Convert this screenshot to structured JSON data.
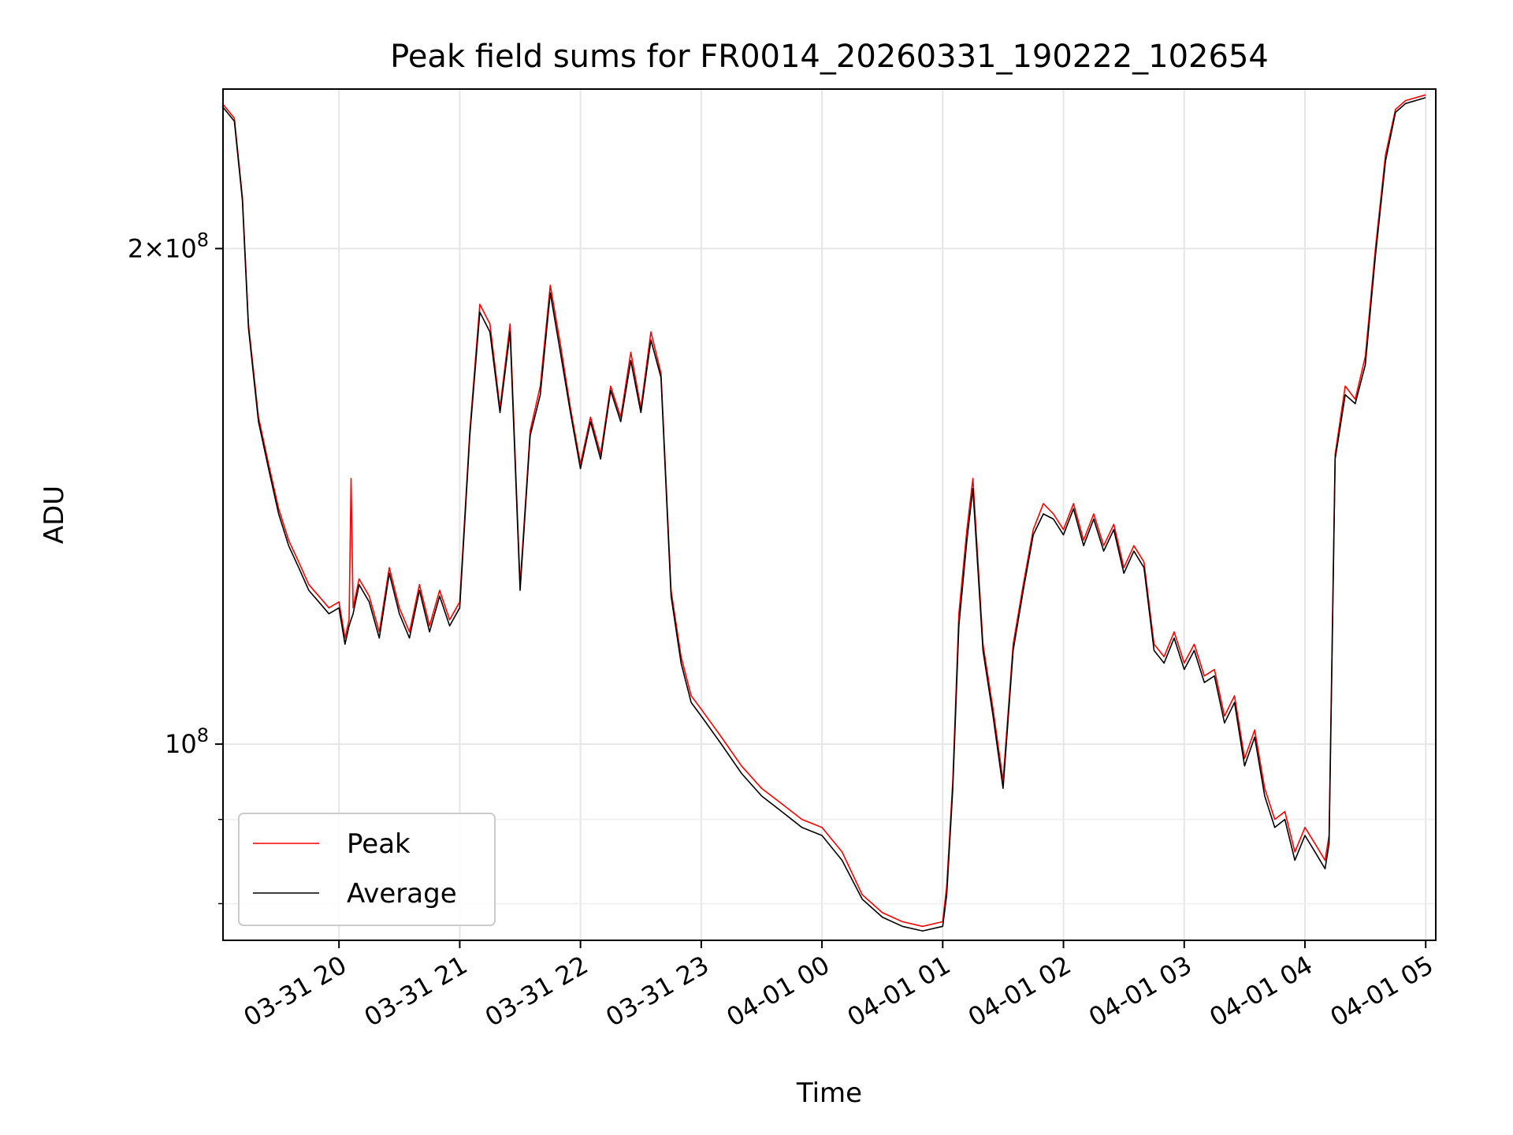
{
  "chart_data": {
    "type": "line",
    "title": "Peak field sums for FR0014_20260331_190222_102654",
    "xlabel": "Time",
    "ylabel": "ADU",
    "yscale": "log",
    "xlim": [
      "2026-03-31 19:02:22",
      "2026-04-01 05:05:00"
    ],
    "ylim": [
      76000000,
      250000000
    ],
    "grid": true,
    "legend_placement": "lower-left",
    "x_ticks": [
      "03-31 20",
      "03-31 21",
      "03-31 22",
      "03-31 23",
      "04-01 00",
      "04-01 01",
      "04-01 02",
      "04-01 03",
      "04-01 04",
      "04-01 05"
    ],
    "y_ticks": [
      {
        "value": 100000000,
        "label": "10^8"
      },
      {
        "value": 200000000,
        "label": "2×10^8"
      }
    ],
    "series": [
      {
        "name": "Peak",
        "color": "#ff0000",
        "points": [
          [
            "03-31 19:02",
            245000000
          ],
          [
            "03-31 19:08",
            240000000
          ],
          [
            "03-31 19:12",
            215000000
          ],
          [
            "03-31 19:15",
            180000000
          ],
          [
            "03-31 19:20",
            158000000
          ],
          [
            "03-31 19:25",
            148000000
          ],
          [
            "03-31 19:30",
            139000000
          ],
          [
            "03-31 19:35",
            133000000
          ],
          [
            "03-31 19:40",
            129000000
          ],
          [
            "03-31 19:45",
            125000000
          ],
          [
            "03-31 19:50",
            123000000
          ],
          [
            "03-31 19:55",
            121000000
          ],
          [
            "03-31 20:00",
            122000000
          ],
          [
            "03-31 20:03",
            116000000
          ],
          [
            "03-31 20:05",
            119000000
          ],
          [
            "03-31 20:06",
            145000000
          ],
          [
            "03-31 20:07",
            121000000
          ],
          [
            "03-31 20:10",
            126000000
          ],
          [
            "03-31 20:15",
            123000000
          ],
          [
            "03-31 20:20",
            117000000
          ],
          [
            "03-31 20:25",
            128000000
          ],
          [
            "03-31 20:30",
            121000000
          ],
          [
            "03-31 20:35",
            117000000
          ],
          [
            "03-31 20:40",
            125000000
          ],
          [
            "03-31 20:45",
            118000000
          ],
          [
            "03-31 20:50",
            124000000
          ],
          [
            "03-31 20:55",
            119000000
          ],
          [
            "03-31 21:00",
            122000000
          ],
          [
            "03-31 21:05",
            155000000
          ],
          [
            "03-31 21:10",
            185000000
          ],
          [
            "03-31 21:15",
            180000000
          ],
          [
            "03-31 21:20",
            160000000
          ],
          [
            "03-31 21:25",
            180000000
          ],
          [
            "03-31 21:30",
            125000000
          ],
          [
            "03-31 21:35",
            155000000
          ],
          [
            "03-31 21:40",
            165000000
          ],
          [
            "03-31 21:45",
            190000000
          ],
          [
            "03-31 21:50",
            175000000
          ],
          [
            "03-31 21:55",
            160000000
          ],
          [
            "03-31 22:00",
            148000000
          ],
          [
            "03-31 22:05",
            158000000
          ],
          [
            "03-31 22:10",
            150000000
          ],
          [
            "03-31 22:15",
            165000000
          ],
          [
            "03-31 22:20",
            158000000
          ],
          [
            "03-31 22:25",
            173000000
          ],
          [
            "03-31 22:30",
            160000000
          ],
          [
            "03-31 22:35",
            178000000
          ],
          [
            "03-31 22:40",
            168000000
          ],
          [
            "03-31 22:45",
            124000000
          ],
          [
            "03-31 22:50",
            113000000
          ],
          [
            "03-31 22:55",
            107000000
          ],
          [
            "03-31 23:00",
            105000000
          ],
          [
            "03-31 23:10",
            101000000
          ],
          [
            "03-31 23:20",
            97000000
          ],
          [
            "03-31 23:30",
            94000000
          ],
          [
            "03-31 23:40",
            92000000
          ],
          [
            "03-31 23:50",
            90000000
          ],
          [
            "04-01 00:00",
            89000000
          ],
          [
            "04-01 00:10",
            86000000
          ],
          [
            "04-01 00:20",
            81000000
          ],
          [
            "04-01 00:30",
            79000000
          ],
          [
            "04-01 00:40",
            78000000
          ],
          [
            "04-01 00:50",
            77500000
          ],
          [
            "04-01 01:00",
            78000000
          ],
          [
            "04-01 01:02",
            82000000
          ],
          [
            "04-01 01:05",
            95000000
          ],
          [
            "04-01 01:08",
            120000000
          ],
          [
            "04-01 01:12",
            135000000
          ],
          [
            "04-01 01:15",
            145000000
          ],
          [
            "04-01 01:20",
            115000000
          ],
          [
            "04-01 01:25",
            105000000
          ],
          [
            "04-01 01:30",
            95000000
          ],
          [
            "04-01 01:35",
            115000000
          ],
          [
            "04-01 01:40",
            125000000
          ],
          [
            "04-01 01:45",
            135000000
          ],
          [
            "04-01 01:50",
            140000000
          ],
          [
            "04-01 01:55",
            138000000
          ],
          [
            "04-01 02:00",
            135000000
          ],
          [
            "04-01 02:05",
            140000000
          ],
          [
            "04-01 02:10",
            133000000
          ],
          [
            "04-01 02:15",
            138000000
          ],
          [
            "04-01 02:20",
            132000000
          ],
          [
            "04-01 02:25",
            136000000
          ],
          [
            "04-01 02:30",
            128000000
          ],
          [
            "04-01 02:35",
            132000000
          ],
          [
            "04-01 02:40",
            129000000
          ],
          [
            "04-01 02:45",
            115000000
          ],
          [
            "04-01 02:50",
            113000000
          ],
          [
            "04-01 02:55",
            117000000
          ],
          [
            "04-01 03:00",
            112000000
          ],
          [
            "04-01 03:05",
            115000000
          ],
          [
            "04-01 03:10",
            110000000
          ],
          [
            "04-01 03:15",
            111000000
          ],
          [
            "04-01 03:20",
            104000000
          ],
          [
            "04-01 03:25",
            107000000
          ],
          [
            "04-01 03:30",
            98000000
          ],
          [
            "04-01 03:35",
            102000000
          ],
          [
            "04-01 03:40",
            94000000
          ],
          [
            "04-01 03:45",
            90000000
          ],
          [
            "04-01 03:50",
            91000000
          ],
          [
            "04-01 03:55",
            86000000
          ],
          [
            "04-01 04:00",
            89000000
          ],
          [
            "04-01 04:05",
            87000000
          ],
          [
            "04-01 04:10",
            85000000
          ],
          [
            "04-01 04:12",
            88000000
          ],
          [
            "04-01 04:15",
            150000000
          ],
          [
            "04-01 04:20",
            165000000
          ],
          [
            "04-01 04:25",
            162000000
          ],
          [
            "04-01 04:30",
            172000000
          ],
          [
            "04-01 04:35",
            200000000
          ],
          [
            "04-01 04:40",
            228000000
          ],
          [
            "04-01 04:45",
            243000000
          ],
          [
            "04-01 04:50",
            246000000
          ],
          [
            "04-01 05:00",
            248000000
          ]
        ]
      },
      {
        "name": "Average",
        "color": "#000000",
        "points": [
          [
            "03-31 19:02",
            244000000
          ],
          [
            "03-31 19:08",
            239000000
          ],
          [
            "03-31 19:12",
            214000000
          ],
          [
            "03-31 19:15",
            179000000
          ],
          [
            "03-31 19:20",
            157000000
          ],
          [
            "03-31 19:25",
            147000000
          ],
          [
            "03-31 19:30",
            138000000
          ],
          [
            "03-31 19:35",
            132000000
          ],
          [
            "03-31 19:40",
            128000000
          ],
          [
            "03-31 19:45",
            124000000
          ],
          [
            "03-31 19:50",
            122000000
          ],
          [
            "03-31 19:55",
            120000000
          ],
          [
            "03-31 20:00",
            121000000
          ],
          [
            "03-31 20:03",
            115000000
          ],
          [
            "03-31 20:05",
            118000000
          ],
          [
            "03-31 20:06",
            119000000
          ],
          [
            "03-31 20:07",
            120000000
          ],
          [
            "03-31 20:10",
            125000000
          ],
          [
            "03-31 20:15",
            122000000
          ],
          [
            "03-31 20:20",
            116000000
          ],
          [
            "03-31 20:25",
            127000000
          ],
          [
            "03-31 20:30",
            120000000
          ],
          [
            "03-31 20:35",
            116000000
          ],
          [
            "03-31 20:40",
            124000000
          ],
          [
            "03-31 20:45",
            117000000
          ],
          [
            "03-31 20:50",
            123000000
          ],
          [
            "03-31 20:55",
            118000000
          ],
          [
            "03-31 21:00",
            121000000
          ],
          [
            "03-31 21:05",
            154000000
          ],
          [
            "03-31 21:10",
            183000000
          ],
          [
            "03-31 21:15",
            178000000
          ],
          [
            "03-31 21:20",
            159000000
          ],
          [
            "03-31 21:25",
            178000000
          ],
          [
            "03-31 21:30",
            124000000
          ],
          [
            "03-31 21:35",
            154000000
          ],
          [
            "03-31 21:40",
            163000000
          ],
          [
            "03-31 21:45",
            188000000
          ],
          [
            "03-31 21:50",
            173000000
          ],
          [
            "03-31 21:55",
            159000000
          ],
          [
            "03-31 22:00",
            147000000
          ],
          [
            "03-31 22:05",
            157000000
          ],
          [
            "03-31 22:10",
            149000000
          ],
          [
            "03-31 22:15",
            164000000
          ],
          [
            "03-31 22:20",
            157000000
          ],
          [
            "03-31 22:25",
            171000000
          ],
          [
            "03-31 22:30",
            159000000
          ],
          [
            "03-31 22:35",
            176000000
          ],
          [
            "03-31 22:40",
            167000000
          ],
          [
            "03-31 22:45",
            123000000
          ],
          [
            "03-31 22:50",
            112000000
          ],
          [
            "03-31 22:55",
            106000000
          ],
          [
            "03-31 23:00",
            104000000
          ],
          [
            "03-31 23:10",
            100000000
          ],
          [
            "03-31 23:20",
            96000000
          ],
          [
            "03-31 23:30",
            93000000
          ],
          [
            "03-31 23:40",
            91000000
          ],
          [
            "03-31 23:50",
            89000000
          ],
          [
            "04-01 00:00",
            88000000
          ],
          [
            "04-01 00:10",
            85000000
          ],
          [
            "04-01 00:20",
            80500000
          ],
          [
            "04-01 00:30",
            78500000
          ],
          [
            "04-01 00:40",
            77500000
          ],
          [
            "04-01 00:50",
            77000000
          ],
          [
            "04-01 01:00",
            77500000
          ],
          [
            "04-01 01:02",
            81000000
          ],
          [
            "04-01 01:05",
            94000000
          ],
          [
            "04-01 01:08",
            118000000
          ],
          [
            "04-01 01:12",
            133000000
          ],
          [
            "04-01 01:15",
            143000000
          ],
          [
            "04-01 01:20",
            114000000
          ],
          [
            "04-01 01:25",
            104000000
          ],
          [
            "04-01 01:30",
            94000000
          ],
          [
            "04-01 01:35",
            114000000
          ],
          [
            "04-01 01:40",
            124000000
          ],
          [
            "04-01 01:45",
            134000000
          ],
          [
            "04-01 01:50",
            138000000
          ],
          [
            "04-01 01:55",
            137000000
          ],
          [
            "04-01 02:00",
            134000000
          ],
          [
            "04-01 02:05",
            139000000
          ],
          [
            "04-01 02:10",
            132000000
          ],
          [
            "04-01 02:15",
            137000000
          ],
          [
            "04-01 02:20",
            131000000
          ],
          [
            "04-01 02:25",
            135000000
          ],
          [
            "04-01 02:30",
            127000000
          ],
          [
            "04-01 02:35",
            131000000
          ],
          [
            "04-01 02:40",
            128000000
          ],
          [
            "04-01 02:45",
            114000000
          ],
          [
            "04-01 02:50",
            112000000
          ],
          [
            "04-01 02:55",
            116000000
          ],
          [
            "04-01 03:00",
            111000000
          ],
          [
            "04-01 03:05",
            114000000
          ],
          [
            "04-01 03:10",
            109000000
          ],
          [
            "04-01 03:15",
            110000000
          ],
          [
            "04-01 03:20",
            103000000
          ],
          [
            "04-01 03:25",
            106000000
          ],
          [
            "04-01 03:30",
            97000000
          ],
          [
            "04-01 03:35",
            101000000
          ],
          [
            "04-01 03:40",
            93000000
          ],
          [
            "04-01 03:45",
            89000000
          ],
          [
            "04-01 03:50",
            90000000
          ],
          [
            "04-01 03:55",
            85000000
          ],
          [
            "04-01 04:00",
            88000000
          ],
          [
            "04-01 04:05",
            86000000
          ],
          [
            "04-01 04:10",
            84000000
          ],
          [
            "04-01 04:12",
            87000000
          ],
          [
            "04-01 04:15",
            149000000
          ],
          [
            "04-01 04:20",
            163000000
          ],
          [
            "04-01 04:25",
            161000000
          ],
          [
            "04-01 04:30",
            170000000
          ],
          [
            "04-01 04:35",
            198000000
          ],
          [
            "04-01 04:40",
            226000000
          ],
          [
            "04-01 04:45",
            242000000
          ],
          [
            "04-01 04:50",
            245000000
          ],
          [
            "04-01 05:00",
            247000000
          ]
        ]
      }
    ]
  }
}
